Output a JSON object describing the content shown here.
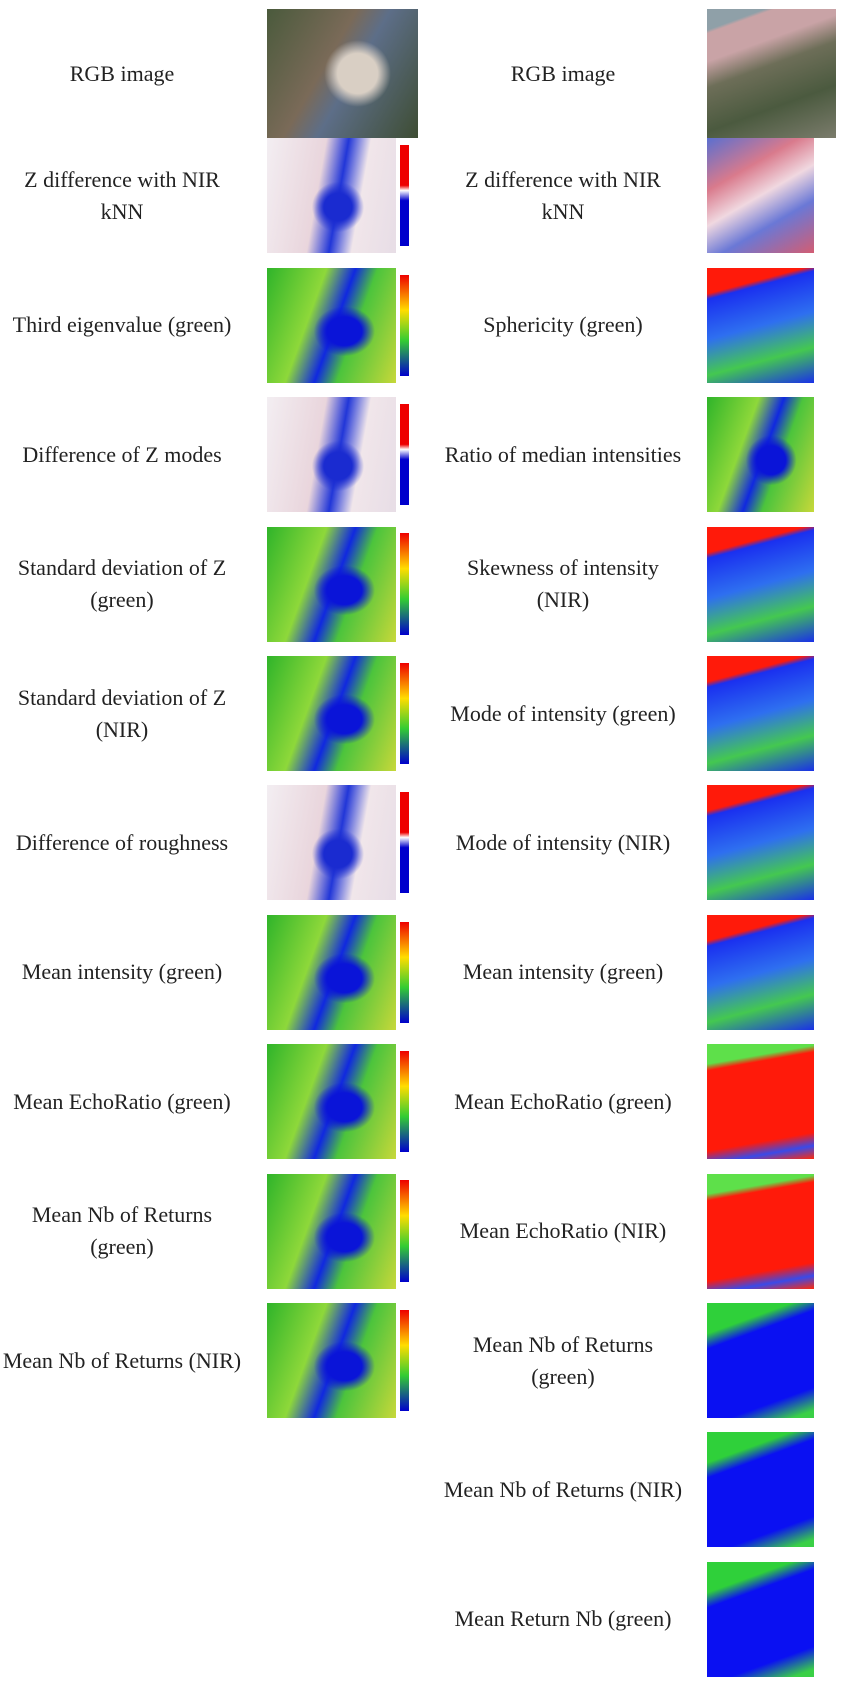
{
  "left": {
    "rows": [
      "RGB image",
      "Z difference with NIR kNN",
      "Third eigenvalue (green)",
      "Difference of Z modes",
      "Standard deviation of Z (green)",
      "Standard deviation of Z (NIR)",
      "Difference of roughness",
      "Mean intensity (green)",
      "Mean EchoRatio (green)",
      "Mean Nb of Returns (green)",
      "Mean Nb of Returns (NIR)"
    ]
  },
  "right": {
    "rows": [
      "RGB image",
      "Z difference with NIR kNN",
      "Sphericity (green)",
      "Ratio of median intensities",
      "Skewness of intensity (NIR)",
      "Mode of intensity (green)",
      "Mode of intensity (NIR)",
      "Mean intensity (green)",
      "Mean EchoRatio (green)",
      "Mean EchoRatio (NIR)",
      "Mean Nb of Returns (green)",
      "Mean Nb of Returns (NIR)",
      "Mean Return Nb (green)"
    ]
  }
}
